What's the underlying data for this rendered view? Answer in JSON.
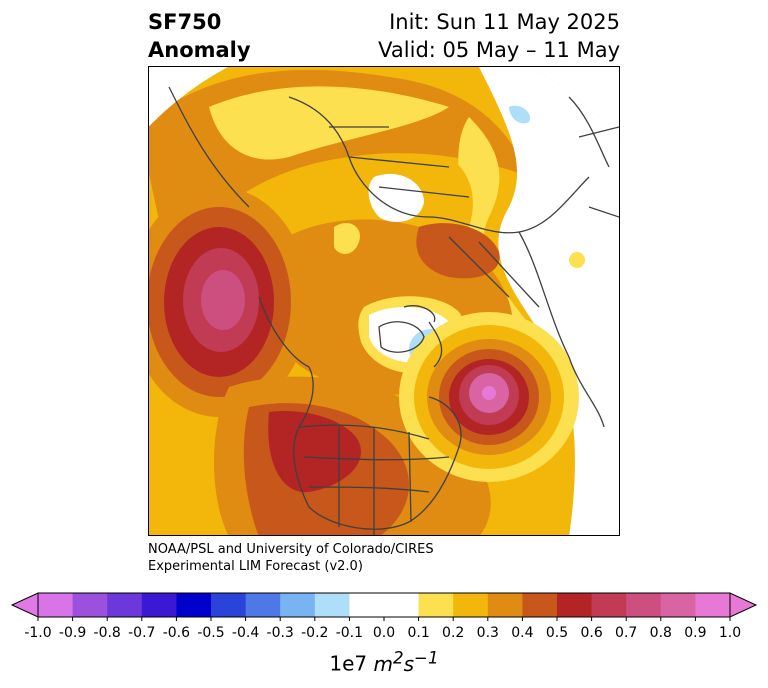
{
  "header": {
    "variable": "SF750",
    "kind": "Anomaly",
    "init": "Init: Sun 11 May 2025",
    "valid": "Valid: 05 May – 11 May"
  },
  "credit": {
    "line1": "NOAA/PSL and University of Colorado/CIRES",
    "line2": "Experimental LIM Forecast (v2.0)"
  },
  "colorbar": {
    "ticks": [
      "-1.0",
      "-0.9",
      "-0.8",
      "-0.7",
      "-0.6",
      "-0.5",
      "-0.4",
      "-0.3",
      "-0.2",
      "-0.1",
      "0.0",
      "0.1",
      "0.2",
      "0.3",
      "0.4",
      "0.5",
      "0.6",
      "0.7",
      "0.8",
      "0.9",
      "1.0"
    ],
    "colors": [
      "#d873e8",
      "#9c51de",
      "#6d38d9",
      "#3b18d3",
      "#0000cc",
      "#2a44d9",
      "#4f77e6",
      "#79b3f2",
      "#addff9",
      "#ffffff",
      "#ffffff",
      "#fde04f",
      "#f3b60a",
      "#e08b12",
      "#c7571b",
      "#b32424",
      "#c23b54",
      "#cc4f80",
      "#d864a3",
      "#e878d6"
    ],
    "under_color": "#e078e6",
    "over_color": "#e878d6",
    "units_prefix": "1e7 ",
    "units_m": "m",
    "units_m_exp": "2",
    "units_s": "s",
    "units_s_exp": "−1"
  },
  "map": {
    "projection": "polar stereographic (North Pole)",
    "field": "750-hPa streamfunction anomaly",
    "color_land_lines": "#404040"
  }
}
